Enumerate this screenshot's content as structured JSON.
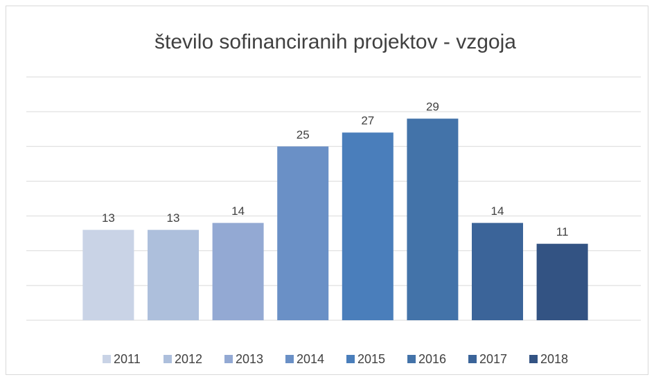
{
  "chart_data": {
    "type": "bar",
    "title": "število sofinanciranih projektov - vzgoja",
    "categories": [
      "2011",
      "2012",
      "2013",
      "2014",
      "2015",
      "2016",
      "2017",
      "2018"
    ],
    "values": [
      13,
      13,
      14,
      25,
      27,
      29,
      14,
      11
    ],
    "colors": [
      "#c9d3e6",
      "#adbfdc",
      "#93a9d3",
      "#6a90c6",
      "#4a7ebb",
      "#4373a9",
      "#3b6499",
      "#335383"
    ],
    "ylim": [
      0,
      35
    ],
    "yticks": [
      0,
      5,
      10,
      15,
      20,
      25,
      30,
      35
    ],
    "grid": true
  }
}
